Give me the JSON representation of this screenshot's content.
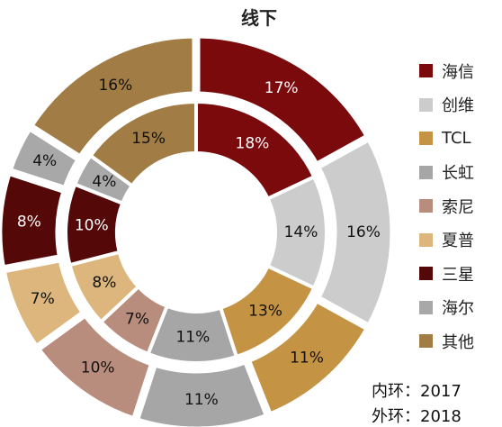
{
  "chart_data": {
    "type": "pie",
    "title": "线下",
    "categories": [
      "海信",
      "创维",
      "TCL",
      "长虹",
      "索尼",
      "夏普",
      "三星",
      "海尔",
      "其他"
    ],
    "colors": [
      "#7b0a0c",
      "#cccccc",
      "#c49444",
      "#a6a6a6",
      "#b98d7e",
      "#dcb67c",
      "#540808",
      "#a8a8a8",
      "#a17c45"
    ],
    "series": [
      {
        "name": "2017",
        "ring": "inner",
        "values": [
          18,
          14,
          13,
          11,
          7,
          8,
          10,
          4,
          15
        ]
      },
      {
        "name": "2018",
        "ring": "outer",
        "values": [
          17,
          16,
          11,
          11,
          10,
          7,
          8,
          4,
          16
        ]
      }
    ],
    "legend_position": "right",
    "ring_notes": {
      "inner": "内环：2017",
      "outer": "外环：2018"
    }
  }
}
